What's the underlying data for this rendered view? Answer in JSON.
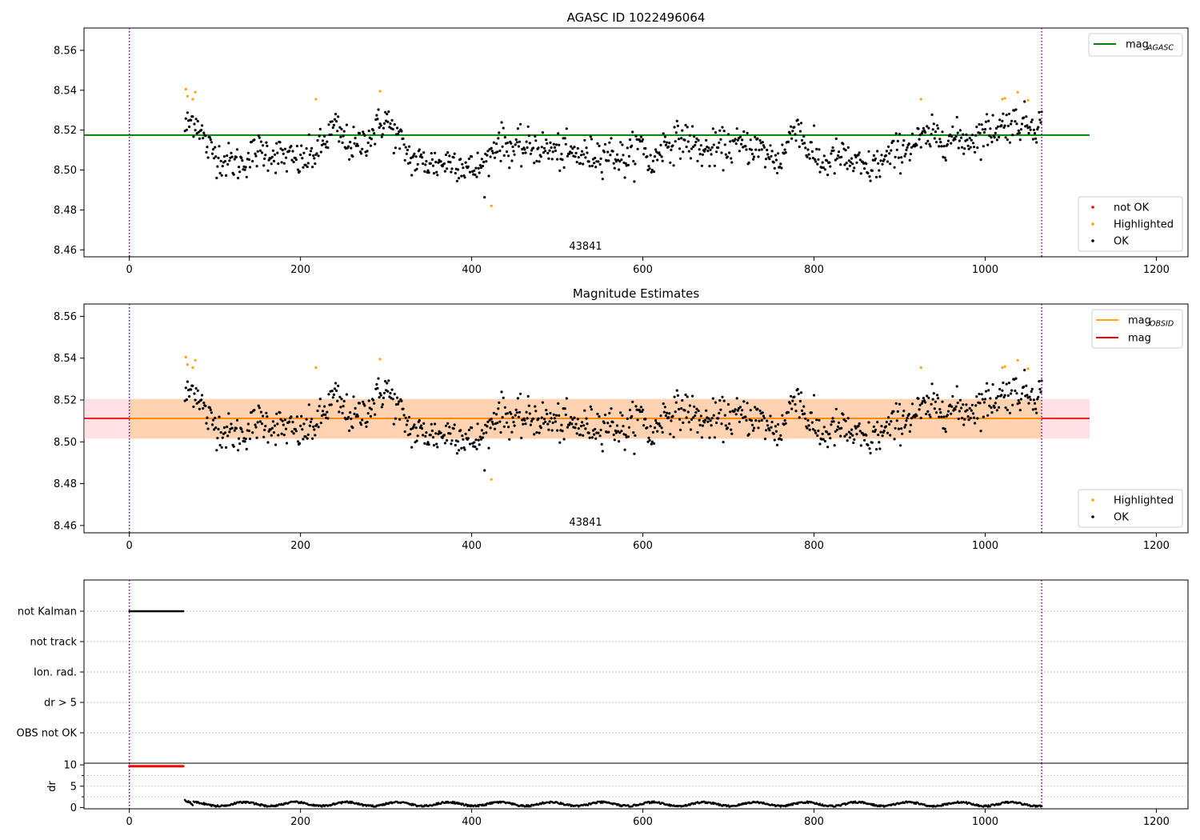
{
  "chart_data": [
    {
      "type": "scatter",
      "title": "AGASC ID 1022496064",
      "xlim": [
        -53,
        1237
      ],
      "ylim": [
        8.4565,
        8.5712
      ],
      "xticks": [
        0,
        200,
        400,
        600,
        800,
        1000,
        1200
      ],
      "yticks": [
        8.46,
        8.48,
        8.5,
        8.52,
        8.54,
        8.56
      ],
      "vlines": [
        0,
        1066
      ],
      "annotation": {
        "text": "43841",
        "x": 533,
        "y": 8.4562
      },
      "mag_agasc": 8.5175,
      "line_xrange": [
        -53,
        1122
      ],
      "legend_top": [
        {
          "label": "mag",
          "sub": "AGASC",
          "color": "#008000"
        }
      ],
      "legend_bottom": [
        {
          "label": "not OK",
          "color": "#ff0000"
        },
        {
          "label": "Highlighted",
          "color": "#ffa500"
        },
        {
          "label": "OK",
          "color": "#000000"
        }
      ]
    },
    {
      "type": "scatter",
      "title": "Magnitude Estimates",
      "xlim": [
        -53,
        1237
      ],
      "ylim": [
        8.4565,
        8.5659
      ],
      "xticks": [
        0,
        200,
        400,
        600,
        800,
        1000,
        1200
      ],
      "yticks": [
        8.46,
        8.48,
        8.5,
        8.52,
        8.54,
        8.56
      ],
      "vlines": [
        0,
        1066
      ],
      "annotation": {
        "text": "43841",
        "x": 533,
        "y": 8.4562
      },
      "mag": 8.5112,
      "mag_obsid": 8.5112,
      "band": [
        8.5015,
        8.5205
      ],
      "band_xrange": [
        -53,
        1122
      ],
      "band_obsid_xrange": [
        0,
        1066
      ],
      "legend_top": [
        {
          "label": "mag",
          "sub": "OBSID",
          "color": "#ffa500"
        },
        {
          "label": "mag",
          "sub": "",
          "color": "#ff0000"
        }
      ],
      "legend_bottom": [
        {
          "label": "Highlighted",
          "color": "#ffa500"
        },
        {
          "label": "OK",
          "color": "#000000"
        }
      ]
    },
    {
      "type": "scatter",
      "title": "",
      "flag_labels": [
        "not Kalman",
        "not track",
        "Ion. rad.",
        "dr > 5",
        "OBS not OK"
      ],
      "not_kalman_range": [
        0,
        63
      ],
      "xlim": [
        -53,
        1237
      ],
      "xticks": [
        0,
        200,
        400,
        600,
        800,
        1000,
        1200
      ],
      "vlines": [
        0,
        1066
      ]
    },
    {
      "type": "scatter",
      "title": "",
      "ylabel": "dr",
      "xlim": [
        -53,
        1237
      ],
      "ylim": [
        -0.3,
        10.4
      ],
      "yticks": [
        0,
        5,
        10
      ],
      "xticks": [
        0,
        200,
        400,
        600,
        800,
        1000,
        1200
      ],
      "dr_high": {
        "range": [
          0,
          63
        ],
        "value": 9.7
      },
      "vlines": [
        0,
        1066
      ]
    }
  ],
  "data_series": {
    "x_start": 65,
    "x_end": 1066,
    "mag_keypoints": [
      [
        65,
        8.521
      ],
      [
        75,
        8.526
      ],
      [
        82,
        8.522
      ],
      [
        90,
        8.512
      ],
      [
        110,
        8.505
      ],
      [
        130,
        8.503
      ],
      [
        150,
        8.51
      ],
      [
        170,
        8.508
      ],
      [
        185,
        8.506
      ],
      [
        200,
        8.504
      ],
      [
        220,
        8.509
      ],
      [
        240,
        8.522
      ],
      [
        250,
        8.515
      ],
      [
        265,
        8.511
      ],
      [
        285,
        8.519
      ],
      [
        300,
        8.526
      ],
      [
        310,
        8.518
      ],
      [
        330,
        8.505
      ],
      [
        360,
        8.503
      ],
      [
        380,
        8.505
      ],
      [
        400,
        8.5
      ],
      [
        415,
        8.502
      ],
      [
        430,
        8.515
      ],
      [
        450,
        8.51
      ],
      [
        470,
        8.512
      ],
      [
        500,
        8.509
      ],
      [
        530,
        8.507
      ],
      [
        560,
        8.509
      ],
      [
        580,
        8.505
      ],
      [
        600,
        8.514
      ],
      [
        610,
        8.5
      ],
      [
        620,
        8.512
      ],
      [
        650,
        8.516
      ],
      [
        670,
        8.509
      ],
      [
        700,
        8.512
      ],
      [
        730,
        8.512
      ],
      [
        760,
        8.504
      ],
      [
        780,
        8.525
      ],
      [
        790,
        8.512
      ],
      [
        810,
        8.503
      ],
      [
        830,
        8.507
      ],
      [
        860,
        8.5
      ],
      [
        880,
        8.504
      ],
      [
        900,
        8.51
      ],
      [
        920,
        8.514
      ],
      [
        940,
        8.517
      ],
      [
        960,
        8.516
      ],
      [
        980,
        8.515
      ],
      [
        1000,
        8.519
      ],
      [
        1030,
        8.524
      ],
      [
        1066,
        8.523
      ]
    ],
    "mag_noise": 0.0045,
    "outlier_orange": [
      [
        66,
        8.5405
      ],
      [
        68,
        8.537
      ],
      [
        74,
        8.5355
      ],
      [
        77,
        8.539
      ],
      [
        218,
        8.5355
      ],
      [
        293,
        8.5395
      ],
      [
        423,
        8.482
      ],
      [
        925,
        8.5355
      ],
      [
        1020,
        8.5355
      ],
      [
        1023,
        8.536
      ],
      [
        1038,
        8.539
      ],
      [
        1050,
        8.535
      ]
    ],
    "dr_base": 0.8
  }
}
